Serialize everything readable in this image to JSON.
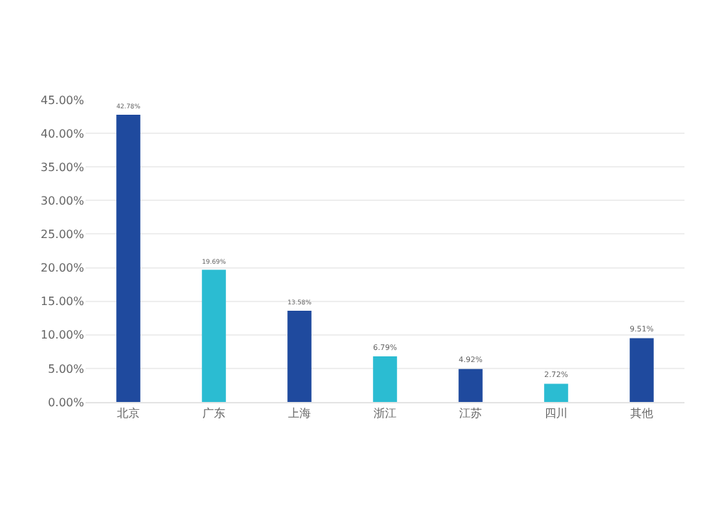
{
  "chart_data": {
    "type": "bar",
    "categories": [
      "北京",
      "广东",
      "上海",
      "浙江",
      "江苏",
      "四川",
      "其他"
    ],
    "values": [
      42.78,
      19.69,
      13.58,
      6.79,
      4.92,
      2.72,
      9.51
    ],
    "colors": [
      "#1f4a9e",
      "#2bbcd2",
      "#1f4a9e",
      "#2bbcd2",
      "#1f4a9e",
      "#2bbcd2",
      "#1f4a9e"
    ],
    "value_labels": [
      "42.78%",
      "19.69%",
      "13.58%",
      "6.79%",
      "4.92%",
      "2.72%",
      "9.51%"
    ],
    "ylim": [
      0,
      45
    ],
    "yticks": [
      {
        "value": 0,
        "label": "0.00%"
      },
      {
        "value": 5,
        "label": "5.00%"
      },
      {
        "value": 10,
        "label": "10.00%"
      },
      {
        "value": 15,
        "label": "15.00%"
      },
      {
        "value": 20,
        "label": "20.00%"
      },
      {
        "value": 25,
        "label": "25.00%"
      },
      {
        "value": 30,
        "label": "30.00%"
      },
      {
        "value": 35,
        "label": "35.00%"
      },
      {
        "value": 40,
        "label": "40.00%"
      },
      {
        "value": 45,
        "label": "45.00%"
      }
    ],
    "grid": "y"
  }
}
